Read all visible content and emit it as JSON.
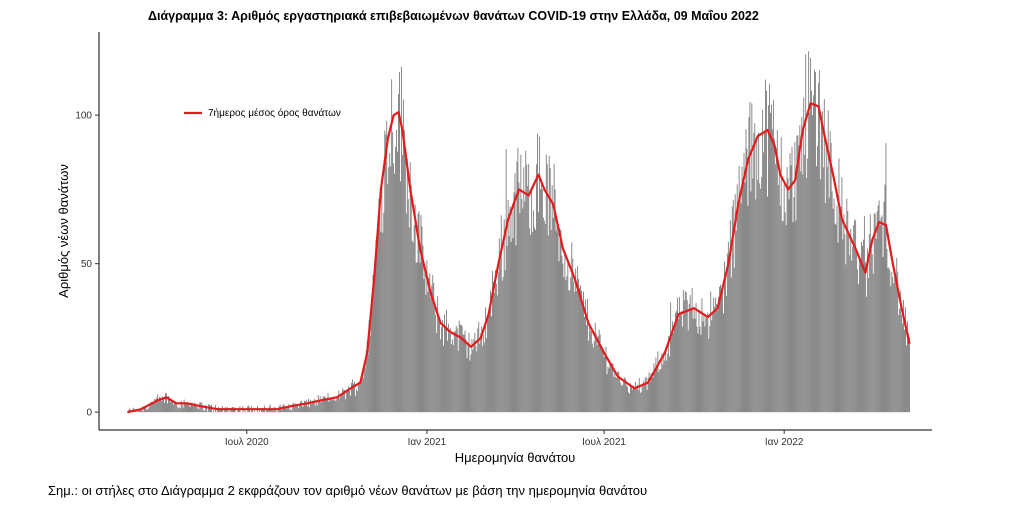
{
  "title": "Διάγραμμα 3: Αριθμός εργαστηριακά επιβεβαιωμένων θανάτων COVID-19 στην Ελλάδα, 09 Μαΐου 2022",
  "note": "Σημ.: οι στήλες στο Διάγραμμα 2 εκφράζουν τον αριθμό νέων θανάτων με βάση την ημερομηνία θανάτου",
  "colors": {
    "bars": "#7f7f7f",
    "line": "#e41a1c"
  },
  "chart_data": {
    "type": "bar",
    "xlabel": "Ημερομηνία θανάτου",
    "ylabel": "Αριθμός νέων θανάτων",
    "x_start": "2020-03-01",
    "x_end": "2022-05-09",
    "xlim": [
      "2020-02-01",
      "2022-06-01"
    ],
    "ylim": [
      -6,
      128
    ],
    "yticks": [
      0,
      50,
      100
    ],
    "xticks": [
      {
        "date": "2020-07-01",
        "label": "Ιουλ 2020"
      },
      {
        "date": "2021-01-01",
        "label": "Ιαν 2021"
      },
      {
        "date": "2021-07-01",
        "label": "Ιουλ 2021"
      },
      {
        "date": "2022-01-01",
        "label": "Ιαν 2022"
      }
    ],
    "legend": {
      "position": "top-left",
      "entries": [
        "7ήμερος μέσος όρος θανάτων"
      ]
    },
    "series": [
      {
        "name": "7ήμερος μέσος όρος θανάτων",
        "kind": "line",
        "points": [
          [
            "2020-03-01",
            0
          ],
          [
            "2020-03-15",
            1
          ],
          [
            "2020-04-01",
            4
          ],
          [
            "2020-04-10",
            5
          ],
          [
            "2020-04-20",
            3
          ],
          [
            "2020-05-01",
            3
          ],
          [
            "2020-05-15",
            2
          ],
          [
            "2020-06-01",
            1
          ],
          [
            "2020-06-15",
            1
          ],
          [
            "2020-07-01",
            1
          ],
          [
            "2020-07-15",
            1
          ],
          [
            "2020-08-01",
            1
          ],
          [
            "2020-08-15",
            2
          ],
          [
            "2020-09-01",
            3
          ],
          [
            "2020-09-15",
            4
          ],
          [
            "2020-10-01",
            5
          ],
          [
            "2020-10-15",
            8
          ],
          [
            "2020-10-25",
            10
          ],
          [
            "2020-11-01",
            20
          ],
          [
            "2020-11-08",
            45
          ],
          [
            "2020-11-15",
            75
          ],
          [
            "2020-11-22",
            92
          ],
          [
            "2020-11-28",
            100
          ],
          [
            "2020-12-03",
            101
          ],
          [
            "2020-12-07",
            95
          ],
          [
            "2020-12-15",
            75
          ],
          [
            "2020-12-25",
            55
          ],
          [
            "2021-01-05",
            40
          ],
          [
            "2021-01-15",
            30
          ],
          [
            "2021-01-25",
            27
          ],
          [
            "2021-02-05",
            25
          ],
          [
            "2021-02-15",
            22
          ],
          [
            "2021-02-25",
            25
          ],
          [
            "2021-03-05",
            33
          ],
          [
            "2021-03-15",
            50
          ],
          [
            "2021-03-25",
            65
          ],
          [
            "2021-04-05",
            75
          ],
          [
            "2021-04-15",
            73
          ],
          [
            "2021-04-25",
            80
          ],
          [
            "2021-05-01",
            75
          ],
          [
            "2021-05-10",
            70
          ],
          [
            "2021-05-20",
            55
          ],
          [
            "2021-06-01",
            45
          ],
          [
            "2021-06-15",
            30
          ],
          [
            "2021-07-01",
            20
          ],
          [
            "2021-07-15",
            12
          ],
          [
            "2021-08-01",
            8
          ],
          [
            "2021-08-15",
            10
          ],
          [
            "2021-09-01",
            20
          ],
          [
            "2021-09-15",
            33
          ],
          [
            "2021-10-01",
            35
          ],
          [
            "2021-10-15",
            32
          ],
          [
            "2021-10-25",
            35
          ],
          [
            "2021-11-05",
            50
          ],
          [
            "2021-11-15",
            70
          ],
          [
            "2021-11-25",
            85
          ],
          [
            "2021-12-05",
            93
          ],
          [
            "2021-12-15",
            95
          ],
          [
            "2021-12-22",
            90
          ],
          [
            "2021-12-28",
            80
          ],
          [
            "2022-01-05",
            75
          ],
          [
            "2022-01-12",
            78
          ],
          [
            "2022-01-20",
            95
          ],
          [
            "2022-01-28",
            104
          ],
          [
            "2022-02-05",
            103
          ],
          [
            "2022-02-10",
            95
          ],
          [
            "2022-02-20",
            80
          ],
          [
            "2022-03-01",
            65
          ],
          [
            "2022-03-15",
            55
          ],
          [
            "2022-03-25",
            47
          ],
          [
            "2022-04-01",
            58
          ],
          [
            "2022-04-08",
            64
          ],
          [
            "2022-04-15",
            63
          ],
          [
            "2022-04-22",
            50
          ],
          [
            "2022-05-01",
            35
          ],
          [
            "2022-05-09",
            23
          ]
        ]
      }
    ]
  }
}
